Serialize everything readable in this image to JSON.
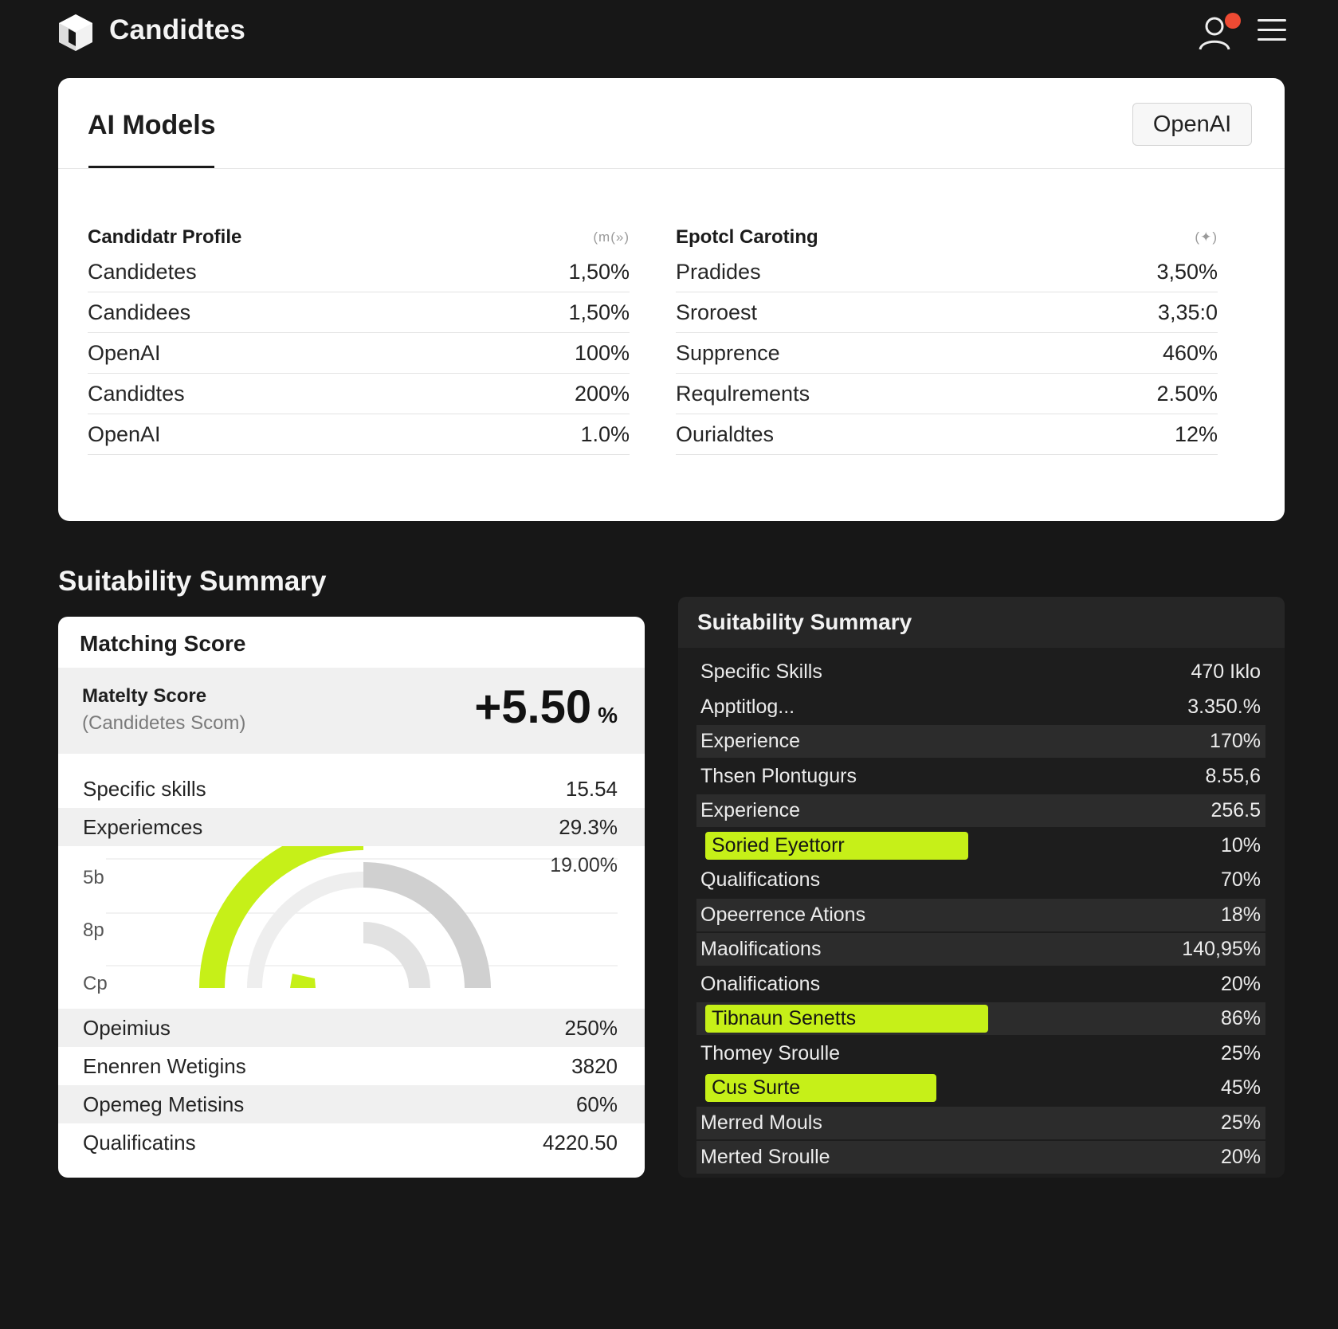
{
  "app": {
    "title": "Candidtes",
    "icons": {
      "logo": "cube-logo-icon",
      "user": "user-icon",
      "menu": "hamburger-menu-icon"
    },
    "notification_color": "#ee4a33"
  },
  "models_card": {
    "tab": "AI Models",
    "provider_button": "OpenAI",
    "left_table": {
      "header": "Candidatr Profile",
      "header_icon": "(m(»)",
      "rows": [
        {
          "label": "Candidetes",
          "value": "1,50%"
        },
        {
          "label": "Candidees",
          "value": "1,50%"
        },
        {
          "label": "OpenAI",
          "value": "100%"
        },
        {
          "label": "Candidtes",
          "value": "200%"
        },
        {
          "label": "OpenAI",
          "value": "1.0%"
        }
      ]
    },
    "right_table": {
      "header": "Epotcl Caroting",
      "header_icon": "(✦)",
      "rows": [
        {
          "label": "Pradides",
          "value": "3,50%"
        },
        {
          "label": "Sroroest",
          "value": "3,35:0"
        },
        {
          "label": "Supprence",
          "value": "460%"
        },
        {
          "label": "Requlrements",
          "value": "2.50%"
        },
        {
          "label": "Ourialdtes",
          "value": "12%"
        }
      ]
    }
  },
  "section_heading": "Suitability Summary",
  "matching_card": {
    "title": "Matching Score",
    "score_label": "Matelty Score",
    "score_sublabel": "(Candidetes Scom)",
    "score_value": "+5.50",
    "score_unit": "%",
    "top_rows": [
      {
        "label": "Specific skills",
        "value": "15.54"
      },
      {
        "label": "Experiemces",
        "value": "29.3%"
      }
    ],
    "gauge": {
      "value_label": "19.00%",
      "y_ticks": [
        "5b",
        "8p",
        "Cp"
      ],
      "accent": "#c6f018"
    },
    "bottom_rows": [
      {
        "label": "Opeimius",
        "value": "250%"
      },
      {
        "label": "Enenren Wetigins",
        "value": "3820"
      },
      {
        "label": "Opemeg Metisins",
        "value": "60%"
      },
      {
        "label": "Qualificatins",
        "value": "4220.50"
      }
    ]
  },
  "summary_panel": {
    "title": "Suitability Summary",
    "highlight_color": "#c6f018",
    "rows": [
      {
        "label": "Specific Skills",
        "value": "470 Iklo",
        "highlight": false
      },
      {
        "label": "Apptitlog...",
        "value": "3.350.%",
        "highlight": false
      },
      {
        "label": "Experience",
        "value": "170%",
        "highlight": false
      },
      {
        "label": "Thsen Plontugurs",
        "value": "8.55,6",
        "highlight": false
      },
      {
        "label": "Experience",
        "value": "256.5",
        "highlight": false
      },
      {
        "label": "Soried Eyettorr",
        "value": "10%",
        "highlight": true
      },
      {
        "label": "Qualifications",
        "value": "70%",
        "highlight": false
      },
      {
        "label": "Opeerrence Ations",
        "value": "18%",
        "highlight": false
      },
      {
        "label": "Maolifications",
        "value": "140,95%",
        "highlight": false
      },
      {
        "label": "Onalifications",
        "value": "20%",
        "highlight": false
      },
      {
        "label": "Tibnaun Senetts",
        "value": "86%",
        "highlight": true
      },
      {
        "label": "Thomey Sroulle",
        "value": "25%",
        "highlight": false
      },
      {
        "label": "Cus Surte",
        "value": "45%",
        "highlight": true
      },
      {
        "label": "Merred Mouls",
        "value": "25%",
        "highlight": false
      },
      {
        "label": "Merted Sroulle",
        "value": "20%",
        "highlight": false
      }
    ]
  }
}
